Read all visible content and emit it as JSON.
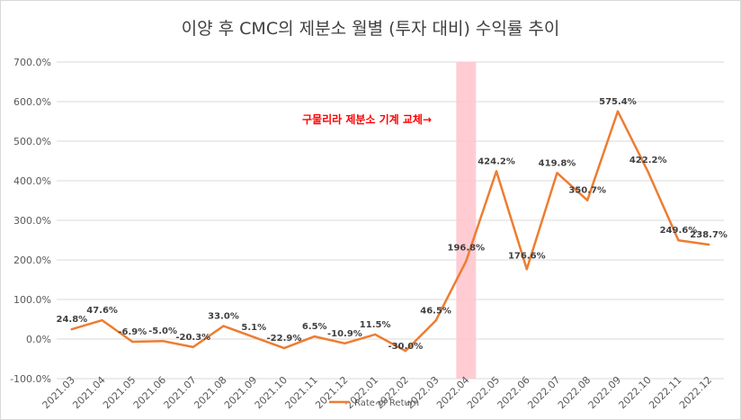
{
  "chart_data": {
    "type": "line",
    "title": "이양 후 CMC의 제분소 월별 (투자 대비) 수익률 추이",
    "categories": [
      "2021.03",
      "2021.04",
      "2021.05",
      "2021.06",
      "2021.07",
      "2021.08",
      "2021.09",
      "2021.10",
      "2021.11",
      "2021.12",
      "2022.01",
      "2022.02",
      "2022.03",
      "2022.04",
      "2022.05",
      "2022.06",
      "2022.07",
      "2022.08",
      "2022.09",
      "2022.10",
      "2022.11",
      "2022.12"
    ],
    "series": [
      {
        "name": "Rate of Return",
        "color": "#ed7d31",
        "values": [
          24.8,
          47.6,
          -6.9,
          -5.0,
          -20.3,
          33.0,
          5.1,
          -22.9,
          6.5,
          -10.9,
          11.5,
          -30.0,
          46.5,
          196.8,
          424.2,
          176.6,
          419.8,
          350.7,
          575.4,
          422.2,
          249.6,
          238.7
        ],
        "labels": [
          "24.8%",
          "47.6%",
          "-6.9%",
          "-5.0%",
          "-20.3%",
          "33.0%",
          "5.1%",
          "-22.9%",
          "6.5%",
          "-10.9%",
          "11.5%",
          "-30.0%",
          "46.5%",
          "196.8%",
          "424.2%",
          "176.6%",
          "419.8%",
          "350.7%",
          "575.4%",
          "422.2%",
          "249.6%",
          "238.7%"
        ]
      }
    ],
    "ylim": [
      -100,
      700
    ],
    "yticks": [
      -100,
      0,
      100,
      200,
      300,
      400,
      500,
      600,
      700
    ],
    "ytick_labels": [
      "-100.0%",
      "0.0%",
      "100.0%",
      "200.0%",
      "300.0%",
      "400.0%",
      "500.0%",
      "600.0%",
      "700.0%"
    ],
    "grid": true,
    "legend": "bottom",
    "highlight": {
      "category": "2022.04",
      "color": "#ffc7ce"
    },
    "annotation": {
      "text": "구물리라 제분소 기계 교체→",
      "color": "#ff0000"
    }
  }
}
